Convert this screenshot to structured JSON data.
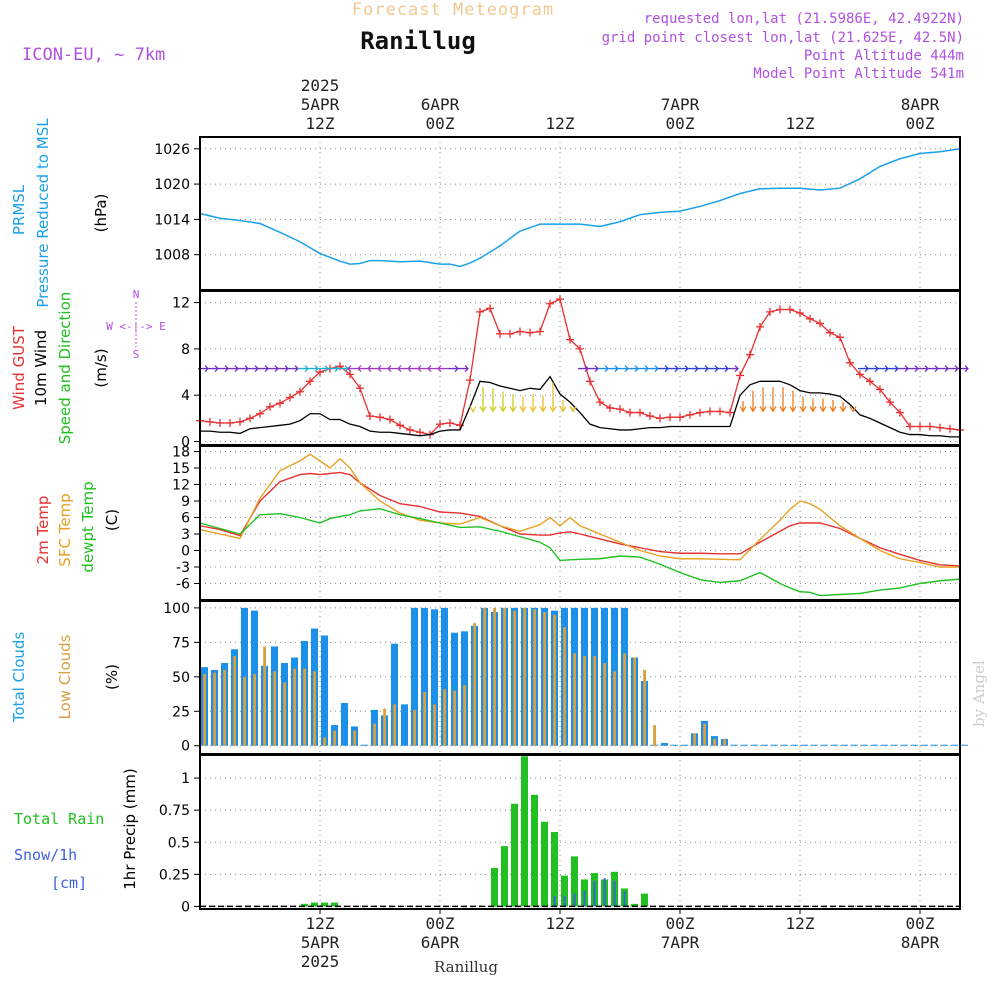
{
  "header": {
    "title": "Forecast Meteogram",
    "location": "Ranillug",
    "model": "ICON-EU, ~ 7km",
    "requested": "requested lon,lat (21.5986E, 42.4922N)",
    "grid_point": "grid point closest lon,lat (21.625E, 42.5N)",
    "point_altitude": "Point Altitude 444m",
    "model_altitude": "Model Point Altitude 541m"
  },
  "footer": {
    "location": "Ranillug",
    "credit": "by Angel"
  },
  "time_axis": {
    "start_hour": 0,
    "end_hour": 76,
    "top_labels": [
      {
        "hour": 12,
        "lines": [
          "2025",
          "5APR",
          "12Z"
        ]
      },
      {
        "hour": 24,
        "lines": [
          "6APR",
          "00Z"
        ]
      },
      {
        "hour": 36,
        "lines": [
          "12Z"
        ]
      },
      {
        "hour": 48,
        "lines": [
          "7APR",
          "00Z"
        ]
      },
      {
        "hour": 60,
        "lines": [
          "12Z"
        ]
      },
      {
        "hour": 72,
        "lines": [
          "8APR",
          "00Z"
        ]
      }
    ],
    "bottom_labels": [
      {
        "hour": 12,
        "lines": [
          "12Z",
          "5APR",
          "2025"
        ]
      },
      {
        "hour": 24,
        "lines": [
          "00Z",
          "6APR"
        ]
      },
      {
        "hour": 36,
        "lines": [
          "12Z"
        ]
      },
      {
        "hour": 48,
        "lines": [
          "00Z",
          "7APR"
        ]
      },
      {
        "hour": 60,
        "lines": [
          "12Z"
        ]
      },
      {
        "hour": 72,
        "lines": [
          "00Z",
          "8APR"
        ]
      }
    ]
  },
  "colors": {
    "pressure": "#1aa0e8",
    "gust": "#e83030",
    "wind": "#000000",
    "temp": "#e83030",
    "sfc": "#e8a020",
    "dew": "#20c020",
    "total_cloud": "#1a90e8",
    "low_cloud": "#d8a040",
    "rain": "#20c020",
    "snow": "#4060e0",
    "meta": "#b050e0",
    "title": "#f0c890"
  },
  "chart_data": [
    {
      "type": "line",
      "panel": "pressure",
      "title": "PRMSL Pressure Reduced to MSL",
      "y_labels": [
        "PRMSL",
        "Pressure Reduced to MSL"
      ],
      "unit": "(hPa)",
      "ylim": [
        1002,
        1028
      ],
      "yticks": [
        1008,
        1014,
        1020,
        1026
      ],
      "series": [
        {
          "name": "PRMSL",
          "x": [
            0,
            2,
            4,
            6,
            8,
            10,
            12,
            14,
            15,
            16,
            17,
            18,
            20,
            22,
            24,
            25,
            26,
            27,
            28,
            30,
            32,
            34,
            36,
            38,
            40,
            42,
            44,
            46,
            48,
            50,
            52,
            54,
            56,
            58,
            60,
            62,
            64,
            66,
            68,
            70,
            72,
            74,
            76
          ],
          "values": [
            1015,
            1014.2,
            1013.8,
            1013.3,
            1011.8,
            1010.2,
            1008.2,
            1006.9,
            1006.4,
            1006.5,
            1007.0,
            1007.0,
            1006.8,
            1006.9,
            1006.4,
            1006.4,
            1006.0,
            1006.6,
            1007.4,
            1009.5,
            1012.0,
            1013.2,
            1013.2,
            1013.2,
            1012.8,
            1013.6,
            1014.8,
            1015.2,
            1015.4,
            1016.2,
            1017.2,
            1018.4,
            1019.2,
            1019.3,
            1019.3,
            1019.0,
            1019.3,
            1020.9,
            1023.0,
            1024.3,
            1025.2,
            1025.5,
            1026.0
          ]
        }
      ]
    },
    {
      "type": "line",
      "panel": "wind",
      "y_labels": [
        "Wind GUST",
        "10m Wind",
        "Speed and Direction"
      ],
      "unit": "(m/s)",
      "compass": [
        "N",
        "W <-|-> E",
        "S"
      ],
      "ylim": [
        -0.3,
        13
      ],
      "yticks": [
        0,
        4,
        8,
        12
      ],
      "x": [
        0,
        1,
        2,
        3,
        4,
        5,
        6,
        7,
        8,
        9,
        10,
        11,
        12,
        13,
        14,
        15,
        16,
        17,
        18,
        19,
        20,
        21,
        22,
        23,
        24,
        25,
        26,
        27,
        28,
        29,
        30,
        31,
        32,
        33,
        34,
        35,
        36,
        37,
        38,
        39,
        40,
        41,
        42,
        43,
        44,
        45,
        46,
        47,
        48,
        49,
        50,
        51,
        52,
        53,
        54,
        55,
        56,
        57,
        58,
        59,
        60,
        61,
        62,
        63,
        64,
        65,
        66,
        67,
        68,
        69,
        70,
        71,
        72,
        73,
        74,
        75,
        76
      ],
      "series": [
        {
          "name": "Wind GUST",
          "values": [
            1.8,
            1.7,
            1.6,
            1.6,
            1.7,
            2.0,
            2.4,
            3.0,
            3.3,
            3.8,
            4.3,
            5.2,
            6.0,
            6.3,
            6.5,
            5.8,
            4.6,
            2.2,
            2.1,
            1.9,
            1.4,
            1.0,
            0.8,
            0.6,
            1.5,
            1.6,
            1.4,
            5.3,
            11.2,
            11.5,
            9.3,
            9.3,
            9.5,
            9.4,
            9.5,
            11.9,
            12.3,
            8.8,
            8.0,
            5.2,
            3.4,
            2.9,
            2.8,
            2.5,
            2.5,
            2.2,
            2.0,
            2.1,
            2.1,
            2.3,
            2.5,
            2.6,
            2.6,
            2.5,
            5.7,
            7.5,
            9.9,
            11.2,
            11.4,
            11.4,
            11.1,
            10.6,
            10.2,
            9.4,
            9.0,
            6.8,
            5.8,
            5.2,
            4.5,
            3.4,
            2.5,
            1.3,
            1.3,
            1.3,
            1.2,
            1.1,
            1.0
          ]
        },
        {
          "name": "10m Wind",
          "values": [
            0.9,
            0.9,
            0.8,
            0.8,
            0.7,
            1.1,
            1.2,
            1.3,
            1.4,
            1.5,
            1.8,
            2.4,
            2.4,
            1.9,
            1.9,
            1.5,
            1.3,
            0.9,
            0.8,
            0.8,
            0.7,
            0.6,
            0.5,
            0.6,
            0.9,
            1.0,
            1.0,
            3.0,
            5.2,
            5.1,
            4.8,
            4.6,
            4.4,
            4.6,
            4.5,
            5.6,
            4.1,
            3.4,
            2.5,
            1.5,
            1.2,
            1.1,
            1.0,
            1.0,
            1.1,
            1.2,
            1.2,
            1.3,
            1.3,
            1.3,
            1.3,
            1.3,
            1.3,
            1.3,
            4.0,
            4.9,
            5.2,
            5.2,
            5.2,
            4.9,
            4.4,
            4.2,
            4.2,
            4.1,
            3.9,
            3.2,
            2.3,
            2.0,
            1.6,
            1.2,
            0.8,
            0.6,
            0.6,
            0.5,
            0.5,
            0.4,
            0.4
          ]
        }
      ]
    },
    {
      "type": "line",
      "panel": "temperature",
      "y_labels": [
        "2m Temp",
        "SFC Temp",
        "dewpt Temp"
      ],
      "unit": "(C)",
      "ylim": [
        -9,
        19
      ],
      "yticks": [
        -6,
        -3,
        0,
        3,
        6,
        9,
        12,
        15,
        18
      ],
      "x": [
        0,
        2,
        4,
        6,
        8,
        10,
        11,
        12,
        13,
        14,
        15,
        16,
        18,
        20,
        22,
        24,
        26,
        28,
        30,
        32,
        34,
        35,
        36,
        37,
        38,
        40,
        42,
        44,
        46,
        48,
        50,
        52,
        54,
        56,
        58,
        59,
        60,
        61,
        62,
        64,
        66,
        68,
        70,
        72,
        74,
        76
      ],
      "series": [
        {
          "name": "2m Temp",
          "values": [
            4.5,
            3.8,
            2.7,
            9.0,
            12.5,
            13.8,
            14.0,
            13.8,
            14.0,
            14.2,
            13.8,
            12.3,
            10.0,
            8.5,
            8.0,
            7.0,
            6.8,
            6.2,
            4.5,
            3.0,
            2.8,
            2.8,
            3.2,
            3.4,
            3.0,
            2.1,
            1.2,
            0.5,
            -0.2,
            -0.5,
            -0.5,
            -0.6,
            -0.6,
            1.5,
            3.5,
            4.5,
            5.0,
            5.0,
            5.0,
            4.0,
            2.2,
            0.5,
            -0.7,
            -1.8,
            -2.6,
            -2.8
          ]
        },
        {
          "name": "SFC Temp",
          "values": [
            3.8,
            3.0,
            2.2,
            9.5,
            14.5,
            16.3,
            17.5,
            16.3,
            15.0,
            16.7,
            15.0,
            12.3,
            9.0,
            6.8,
            5.5,
            5.0,
            4.8,
            6.0,
            4.5,
            3.5,
            4.7,
            6.0,
            4.5,
            6.0,
            4.5,
            3.0,
            1.5,
            0.0,
            -1.0,
            -1.5,
            -1.5,
            -1.6,
            -1.7,
            2.0,
            5.5,
            7.5,
            9.0,
            8.5,
            7.5,
            4.5,
            2.2,
            0.0,
            -1.5,
            -2.2,
            -3.0,
            -3.0
          ]
        },
        {
          "name": "dewpt Temp",
          "values": [
            5.0,
            4.0,
            3.0,
            6.5,
            6.7,
            6.0,
            5.5,
            5.0,
            5.8,
            6.2,
            6.5,
            7.2,
            7.6,
            6.5,
            5.8,
            5.0,
            4.2,
            4.3,
            3.5,
            2.5,
            1.5,
            0.5,
            -1.8,
            -1.7,
            -1.6,
            -1.5,
            -1.0,
            -1.2,
            -2.5,
            -4.0,
            -5.3,
            -5.8,
            -5.5,
            -4.0,
            -6.0,
            -6.8,
            -7.5,
            -7.6,
            -8.2,
            -8.0,
            -7.8,
            -7.2,
            -6.8,
            -6.0,
            -5.5,
            -5.2
          ]
        }
      ]
    },
    {
      "type": "bar",
      "panel": "clouds",
      "y_labels": [
        "Total Clouds",
        "Low Clouds"
      ],
      "unit": "(%)",
      "ylim": [
        -6,
        105
      ],
      "yticks": [
        0,
        25,
        50,
        75,
        100
      ],
      "x": [
        0,
        1,
        2,
        3,
        4,
        5,
        6,
        7,
        8,
        9,
        10,
        11,
        12,
        13,
        14,
        15,
        16,
        17,
        18,
        19,
        20,
        21,
        22,
        23,
        24,
        25,
        26,
        27,
        28,
        29,
        30,
        31,
        32,
        33,
        34,
        35,
        36,
        37,
        38,
        39,
        40,
        41,
        42,
        43,
        44,
        45,
        46,
        47,
        48,
        49,
        50,
        51,
        52,
        53,
        54,
        55,
        56,
        57,
        58,
        59,
        60,
        61,
        62,
        63,
        64,
        65,
        66,
        67,
        68,
        69,
        70,
        71,
        72,
        73,
        74,
        75,
        76
      ],
      "series": [
        {
          "name": "Total Clouds",
          "values": [
            57,
            55,
            60,
            70,
            100,
            98,
            58,
            72,
            60,
            64,
            76,
            85,
            80,
            15,
            31,
            14,
            0,
            26,
            22,
            74,
            30,
            100,
            100,
            99,
            100,
            82,
            83,
            87,
            100,
            97,
            100,
            100,
            100,
            100,
            100,
            98,
            100,
            100,
            100,
            100,
            100,
            100,
            100,
            64,
            47,
            0,
            2,
            0,
            0,
            9,
            18,
            7,
            5,
            0,
            0,
            0,
            0,
            0,
            0,
            0,
            0,
            0,
            0,
            0,
            0,
            0,
            0,
            0,
            0,
            0,
            0,
            0,
            0,
            0,
            0,
            0,
            0
          ]
        },
        {
          "name": "Low Clouds",
          "values": [
            52,
            53,
            55,
            65,
            50,
            52,
            72,
            54,
            46,
            56,
            56,
            54,
            6,
            11,
            0,
            11,
            0,
            16,
            27,
            30,
            0,
            26,
            39,
            30,
            41,
            40,
            44,
            89,
            100,
            100,
            100,
            98,
            100,
            99,
            97,
            95,
            86,
            67,
            65,
            65,
            60,
            54,
            67,
            64,
            55,
            15,
            0,
            0,
            0,
            9,
            16,
            5,
            5,
            0,
            0,
            0,
            0,
            0,
            0,
            0,
            0,
            0,
            0,
            0,
            0,
            0,
            0,
            0,
            0,
            0,
            0,
            0,
            0,
            0,
            0,
            0,
            0
          ]
        }
      ]
    },
    {
      "type": "bar",
      "panel": "precipitation",
      "y_labels": [
        "Total Rain",
        "Snow/1h",
        "[cm]"
      ],
      "unit": "1hr Precip (mm)",
      "ylim": [
        -0.02,
        1.18
      ],
      "yticks": [
        0,
        0.25,
        0.5,
        0.75,
        1
      ],
      "ytick_labels": [
        "0",
        "0.25",
        "0.5",
        "0.75",
        "1"
      ],
      "x": [
        0,
        1,
        2,
        3,
        4,
        5,
        6,
        7,
        8,
        9,
        10,
        11,
        12,
        13,
        14,
        15,
        16,
        17,
        18,
        19,
        20,
        21,
        22,
        23,
        24,
        25,
        26,
        27,
        28,
        29,
        30,
        31,
        32,
        33,
        34,
        35,
        36,
        37,
        38,
        39,
        40,
        41,
        42,
        43,
        44,
        45,
        46,
        47,
        48,
        49,
        50,
        51,
        52,
        53,
        54,
        55,
        56,
        57,
        58,
        59,
        60,
        61,
        62,
        63,
        64,
        65,
        66,
        67,
        68,
        69,
        70,
        71,
        72,
        73,
        74,
        75,
        76
      ],
      "series": [
        {
          "name": "Total Rain",
          "values": [
            0,
            0,
            0,
            0,
            0,
            0,
            0,
            0,
            0,
            0,
            0.02,
            0.03,
            0.03,
            0.03,
            0,
            0,
            0,
            0,
            0,
            0,
            0,
            0,
            0,
            0,
            0,
            0,
            0,
            0,
            0,
            0.3,
            0.47,
            0.8,
            1.17,
            0.87,
            0.66,
            0.58,
            0.24,
            0.39,
            0.21,
            0.26,
            0.21,
            0.27,
            0.14,
            0.02,
            0.1,
            0,
            0,
            0,
            0,
            0,
            0,
            0,
            0,
            0,
            0,
            0,
            0,
            0,
            0,
            0,
            0,
            0,
            0,
            0,
            0,
            0,
            0,
            0,
            0,
            0,
            0,
            0,
            0,
            0,
            0,
            0,
            0
          ]
        },
        {
          "name": "Snow/1h",
          "values": [
            0,
            0,
            0,
            0,
            0,
            0,
            0,
            0,
            0,
            0,
            0,
            0,
            0,
            0,
            0,
            0,
            0,
            0,
            0,
            0,
            0,
            0,
            0,
            0,
            0,
            0,
            0,
            0,
            0,
            0,
            0,
            0,
            0,
            0,
            0,
            0.08,
            0.08,
            0.1,
            0.12,
            0.2,
            0.22,
            0.2,
            0.12,
            0,
            0,
            0,
            0,
            0,
            0,
            0,
            0,
            0,
            0,
            0,
            0,
            0,
            0,
            0,
            0,
            0,
            0,
            0,
            0,
            0,
            0,
            0,
            0,
            0,
            0,
            0,
            0,
            0,
            0,
            0,
            0,
            0,
            0
          ]
        }
      ]
    }
  ]
}
